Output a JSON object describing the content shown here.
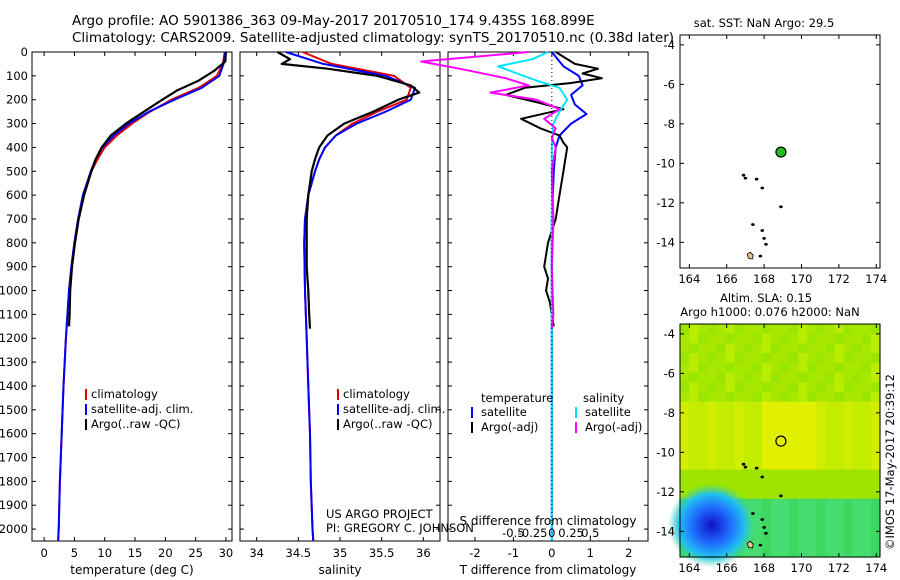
{
  "header": {
    "line1": "Argo profile: AO 5901386_363 09-May-2017 20170510_174 9.435S 168.899E",
    "line2": "Climatology: CARS2009. Satellite-adjusted climatology: synTS_20170510.nc (0.38d later)"
  },
  "colors": {
    "climatology": "#e00000",
    "satellite": "#0000ff",
    "argo": "#000000",
    "sat_salinity": "#00e5ff",
    "argo_salinity": "#ff00ff"
  },
  "chart_data": [
    {
      "type": "line",
      "id": "temperature",
      "xlabel": "temperature (deg C)",
      "ylabel": "",
      "xlim": [
        -2,
        31
      ],
      "ylim": [
        2050,
        0
      ],
      "xticks": [
        0,
        5,
        10,
        15,
        20,
        25,
        30
      ],
      "yticks": [
        0,
        100,
        200,
        300,
        400,
        500,
        600,
        700,
        800,
        900,
        1000,
        1100,
        1200,
        1300,
        1400,
        1500,
        1600,
        1700,
        1800,
        1900,
        2000
      ],
      "legend": [
        "climatology",
        "satellite-adj. clim.",
        "Argo(..raw -QC)"
      ],
      "series": [
        {
          "name": "climatology",
          "depth": [
            0,
            50,
            100,
            150,
            200,
            250,
            300,
            350,
            400,
            450,
            500,
            600,
            700,
            800,
            900,
            1000,
            1200,
            1400,
            1600,
            1800,
            2000,
            2050
          ],
          "values": [
            29.8,
            29.5,
            28.5,
            25.5,
            21,
            17.5,
            14.5,
            12,
            10,
            8.8,
            7.8,
            6.5,
            5.6,
            5,
            4.5,
            4.1,
            3.6,
            3.2,
            2.9,
            2.6,
            2.4,
            2.3
          ]
        },
        {
          "name": "satellite-adj. clim.",
          "depth": [
            0,
            50,
            100,
            150,
            200,
            250,
            300,
            350,
            400,
            450,
            500,
            600,
            700,
            800,
            900,
            1000,
            1200,
            1400,
            1600,
            1800,
            2000,
            2050
          ],
          "values": [
            29.9,
            29.6,
            28.9,
            26,
            21.5,
            17.3,
            14,
            11.5,
            9.6,
            8.5,
            7.7,
            6.4,
            5.6,
            5,
            4.5,
            4.1,
            3.6,
            3.2,
            2.9,
            2.6,
            2.4,
            2.3
          ]
        },
        {
          "name": "Argo(..raw -QC)",
          "depth": [
            0,
            40,
            80,
            120,
            160,
            200,
            250,
            300,
            350,
            400,
            450,
            500,
            600,
            700,
            800,
            900,
            1000,
            1100,
            1150
          ],
          "values": [
            30,
            29.9,
            28,
            25.5,
            22,
            19.5,
            16.5,
            13.5,
            11,
            9.5,
            8.5,
            7.8,
            6.6,
            5.7,
            5.1,
            4.6,
            4.3,
            4.2,
            4.1
          ]
        }
      ]
    },
    {
      "type": "line",
      "id": "salinity",
      "xlabel": "salinity",
      "ylabel": "",
      "xlim": [
        33.8,
        36.2
      ],
      "ylim": [
        2050,
        0
      ],
      "xticks": [
        34,
        34.5,
        35,
        35.5,
        36
      ],
      "xticklabels": [
        "34",
        "34.5",
        "35",
        "35.5",
        "36"
      ],
      "legend": [
        "climatology",
        "satellite-adj. clim.",
        "Argo(..raw -QC)"
      ],
      "annotation": [
        "US ARGO PROJECT",
        "PI: GREGORY C. JOHNSON"
      ],
      "series": [
        {
          "name": "climatology",
          "depth": [
            0,
            50,
            100,
            150,
            200,
            250,
            300,
            350,
            400,
            450,
            500,
            600,
            700,
            800,
            1000,
            1200,
            1400,
            1600,
            1800,
            2000,
            2050
          ],
          "values": [
            34.55,
            34.9,
            35.65,
            35.85,
            35.8,
            35.45,
            35.15,
            34.95,
            34.82,
            34.75,
            34.7,
            34.62,
            34.58,
            34.57,
            34.58,
            34.6,
            34.62,
            34.64,
            34.65,
            34.67,
            34.68
          ]
        },
        {
          "name": "satellite-adj. clim.",
          "depth": [
            0,
            50,
            100,
            150,
            200,
            250,
            300,
            350,
            400,
            450,
            500,
            600,
            700,
            800,
            1000,
            1200,
            1400,
            1600,
            1800,
            2000,
            2050
          ],
          "values": [
            34.35,
            34.8,
            35.55,
            35.9,
            35.85,
            35.55,
            35.2,
            34.95,
            34.82,
            34.75,
            34.7,
            34.62,
            34.58,
            34.57,
            34.58,
            34.6,
            34.62,
            34.64,
            34.65,
            34.67,
            34.68
          ]
        },
        {
          "name": "Argo(..raw -QC)",
          "depth": [
            0,
            30,
            50,
            70,
            100,
            140,
            170,
            200,
            250,
            300,
            350,
            400,
            450,
            500,
            600,
            700,
            800,
            900,
            1000,
            1100,
            1160
          ],
          "values": [
            34.25,
            34.4,
            34.3,
            34.85,
            35.45,
            35.85,
            35.95,
            35.7,
            35.4,
            35.05,
            34.85,
            34.75,
            34.7,
            34.66,
            34.62,
            34.6,
            34.6,
            34.6,
            34.62,
            34.63,
            34.64
          ]
        }
      ]
    },
    {
      "type": "line",
      "id": "difference",
      "xlabel": "T difference from climatology",
      "xlabel_top": "S difference from climatology",
      "ylabel": "",
      "xlim": [
        -2.7,
        2.5
      ],
      "ylim": [
        2050,
        0
      ],
      "xticks": [
        -2,
        -1,
        0,
        1,
        2
      ],
      "xticklabels": [
        "-2",
        "-1",
        "0",
        "1",
        "2"
      ],
      "s_ticks": [
        -0.5,
        -0.25,
        0,
        0.25,
        0.5
      ],
      "s_ticklabels": [
        "-0.5",
        "-0.25",
        "0",
        "0.25",
        "0.5"
      ],
      "legend_headers": [
        "temperature",
        "salinity"
      ],
      "legend": [
        "satellite",
        "Argo(-adj)",
        "satellite",
        "Argo(-adj)"
      ],
      "series": [
        {
          "name": "T satellite",
          "depth": [
            0,
            60,
            100,
            140,
            180,
            220,
            260,
            300,
            350,
            400,
            500,
            700,
            1000,
            1500,
            2000,
            2050
          ],
          "values": [
            0,
            0.3,
            0.7,
            0.8,
            0.5,
            0.6,
            0.9,
            0.5,
            0.2,
            0.1,
            0.05,
            0,
            0,
            0,
            0,
            0
          ]
        },
        {
          "name": "T Argo(-adj)",
          "depth": [
            0,
            50,
            70,
            90,
            110,
            130,
            150,
            180,
            210,
            240,
            280,
            320,
            350,
            380,
            400,
            500,
            600,
            700,
            800,
            900,
            950,
            1000,
            1050,
            1100,
            1150
          ],
          "values": [
            0.1,
            0.6,
            1.2,
            0.8,
            1.3,
            0.5,
            -0.7,
            -1.2,
            -0.4,
            0.3,
            -0.8,
            -0.3,
            0.2,
            0.3,
            0.4,
            0.3,
            0.2,
            0.1,
            -0.1,
            -0.2,
            -0.1,
            -0.15,
            -0.05,
            0,
            0.05
          ]
        },
        {
          "name": "S satellite",
          "depth": [
            0,
            30,
            60,
            90,
            120,
            150,
            200,
            250,
            300,
            400,
            600,
            1000,
            1500,
            2000,
            2050
          ],
          "values": [
            -0.05,
            -0.25,
            -0.7,
            -0.45,
            -0.2,
            0.1,
            0.2,
            0.1,
            0.02,
            0,
            0,
            0,
            0,
            0,
            0
          ]
        },
        {
          "name": "S Argo(-adj)",
          "depth": [
            0,
            40,
            70,
            110,
            140,
            170,
            200,
            240,
            280,
            320,
            360,
            400,
            500,
            700,
            900,
            1100,
            1160
          ],
          "values": [
            -0.3,
            -1.7,
            -1.2,
            -0.6,
            -0.3,
            -0.8,
            -0.2,
            0.1,
            -0.1,
            0.05,
            0,
            0.05,
            0,
            0.02,
            0,
            0.02,
            0
          ]
        }
      ]
    },
    {
      "type": "scatter",
      "id": "sst_map",
      "title": "sat. SST: NaN Argo: 29.5",
      "xlim": [
        163.5,
        174.2
      ],
      "ylim": [
        -15.3,
        -3.5
      ],
      "xticks": [
        164,
        166,
        168,
        170,
        172,
        174
      ],
      "yticks": [
        -4,
        -6,
        -8,
        -10,
        -12,
        -14
      ],
      "points": [
        {
          "x": 168.9,
          "y": -9.43
        }
      ]
    },
    {
      "type": "heatmap",
      "id": "sla_map",
      "title": "Altim. SLA: 0.15",
      "subtitle": "Argo h1000: 0.076 h2000: NaN",
      "xlim": [
        163.5,
        174.2
      ],
      "ylim": [
        -15.3,
        -3.5
      ],
      "xticks": [
        164,
        166,
        168,
        170,
        172,
        174
      ],
      "yticks": [
        -4,
        -6,
        -8,
        -10,
        -12,
        -14
      ],
      "points": [
        {
          "x": 168.9,
          "y": -9.43
        }
      ]
    }
  ],
  "watermark": "©IMOS 17-May-2017 20:39:12"
}
